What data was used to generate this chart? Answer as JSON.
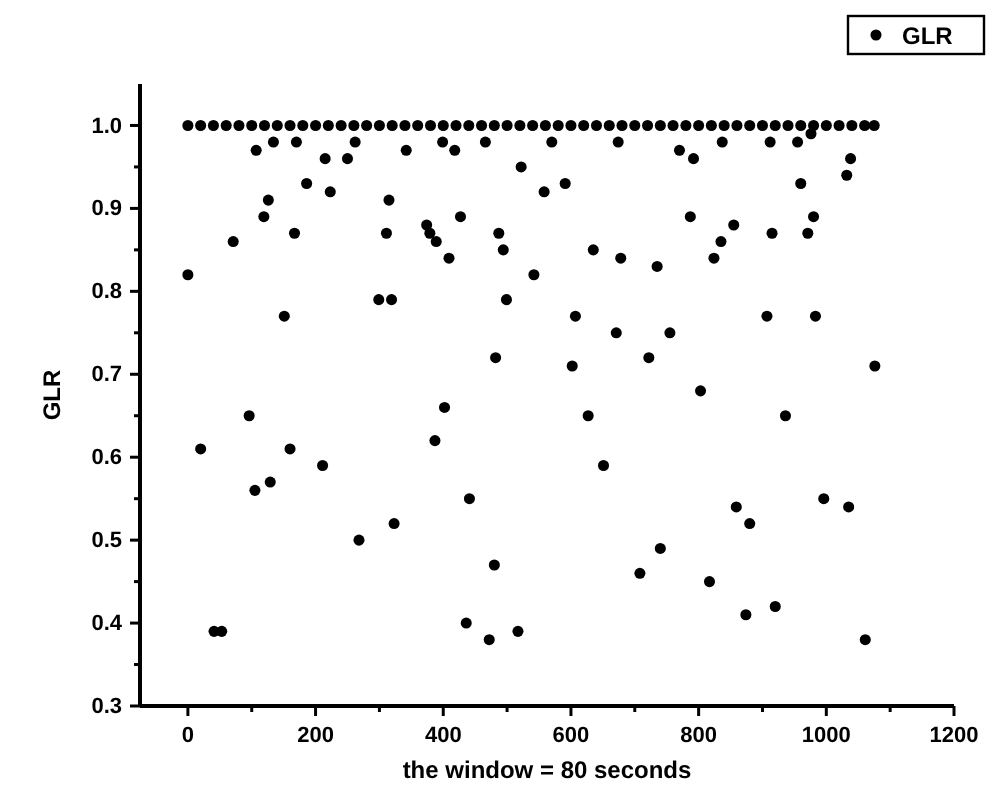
{
  "chart_data": {
    "type": "scatter",
    "xlabel": "the window = 80 seconds",
    "ylabel": "GLR",
    "xlim": [
      -75,
      1200
    ],
    "ylim": [
      0.3,
      1.05
    ],
    "xticks": [
      0,
      {
        "value": 100,
        "label": null
      },
      200,
      {
        "value": 300,
        "label": null
      },
      400,
      {
        "value": 500,
        "label": null
      },
      600,
      {
        "value": 700,
        "label": null
      },
      800,
      {
        "value": 900,
        "label": null
      },
      1000,
      {
        "value": 1100,
        "label": null
      },
      1200
    ],
    "yticks": [
      0.3,
      {
        "value": 0.35,
        "label": null
      },
      0.4,
      {
        "value": 0.45,
        "label": null
      },
      0.5,
      {
        "value": 0.55,
        "label": null
      },
      0.6,
      {
        "value": 0.65,
        "label": null
      },
      0.7,
      {
        "value": 0.75,
        "label": null
      },
      0.8,
      {
        "value": 0.85,
        "label": null
      },
      0.9,
      {
        "value": 0.95,
        "label": null
      },
      {
        "value": 1,
        "label": "1.0"
      }
    ],
    "marker": "circle",
    "legend": "top right",
    "grid": false,
    "series": [
      {
        "name": "GLR",
        "color": "#000000",
        "x": [
          0,
          20,
          41,
          53,
          71,
          96,
          105,
          107,
          119,
          126,
          129,
          134,
          151,
          160,
          167,
          170,
          186,
          211,
          215,
          223,
          250,
          262,
          268,
          299,
          311,
          315,
          319,
          323,
          342,
          374,
          379,
          387,
          389,
          399,
          402,
          409,
          418,
          427,
          436,
          441,
          466,
          472,
          480,
          482,
          487,
          494,
          499,
          517,
          522,
          542,
          558,
          570,
          591,
          602,
          607,
          627,
          635,
          651,
          671,
          674,
          678,
          708,
          722,
          735,
          740,
          755,
          770,
          787,
          792,
          803,
          817,
          824,
          835,
          837,
          855,
          859,
          874,
          880,
          907,
          912,
          915,
          920,
          936,
          955,
          960,
          971,
          976,
          980,
          983,
          996,
          1032,
          1035,
          1038,
          1061,
          1076,
          0,
          20,
          40,
          60,
          80,
          100,
          120,
          140,
          160,
          180,
          200,
          220,
          240,
          260,
          280,
          300,
          320,
          340,
          360,
          380,
          400,
          420,
          440,
          460,
          480,
          500,
          520,
          540,
          560,
          580,
          600,
          620,
          640,
          660,
          680,
          700,
          720,
          740,
          760,
          780,
          800,
          820,
          840,
          860,
          880,
          900,
          920,
          940,
          960,
          980,
          1000,
          1020,
          1040,
          1060,
          1075
        ],
        "values": [
          0.82,
          0.61,
          0.39,
          0.39,
          0.86,
          0.65,
          0.56,
          0.97,
          0.89,
          0.91,
          0.57,
          0.98,
          0.77,
          0.61,
          0.87,
          0.98,
          0.93,
          0.59,
          0.96,
          0.92,
          0.96,
          0.98,
          0.5,
          0.79,
          0.87,
          0.91,
          0.79,
          0.52,
          0.97,
          0.88,
          0.87,
          0.62,
          0.86,
          0.98,
          0.66,
          0.84,
          0.97,
          0.89,
          0.4,
          0.55,
          0.98,
          0.38,
          0.47,
          0.72,
          0.87,
          0.85,
          0.79,
          0.39,
          0.95,
          0.82,
          0.92,
          0.98,
          0.93,
          0.71,
          0.77,
          0.65,
          0.85,
          0.59,
          0.75,
          0.98,
          0.84,
          0.46,
          0.72,
          0.83,
          0.49,
          0.75,
          0.97,
          0.89,
          0.96,
          0.68,
          0.45,
          0.84,
          0.86,
          0.98,
          0.88,
          0.54,
          0.41,
          0.52,
          0.77,
          0.98,
          0.87,
          0.42,
          0.65,
          0.98,
          0.93,
          0.87,
          0.99,
          0.89,
          0.77,
          0.55,
          0.94,
          0.54,
          0.96,
          0.38,
          0.71,
          1,
          1,
          1,
          1,
          1,
          1,
          1,
          1,
          1,
          1,
          1,
          1,
          1,
          1,
          1,
          1,
          1,
          1,
          1,
          1,
          1,
          1,
          1,
          1,
          1,
          1,
          1,
          1,
          1,
          1,
          1,
          1,
          1,
          1,
          1,
          1,
          1,
          1,
          1,
          1,
          1,
          1,
          1,
          1,
          1,
          1,
          1,
          1,
          1,
          1,
          1,
          1,
          1,
          1,
          1
        ]
      }
    ]
  }
}
